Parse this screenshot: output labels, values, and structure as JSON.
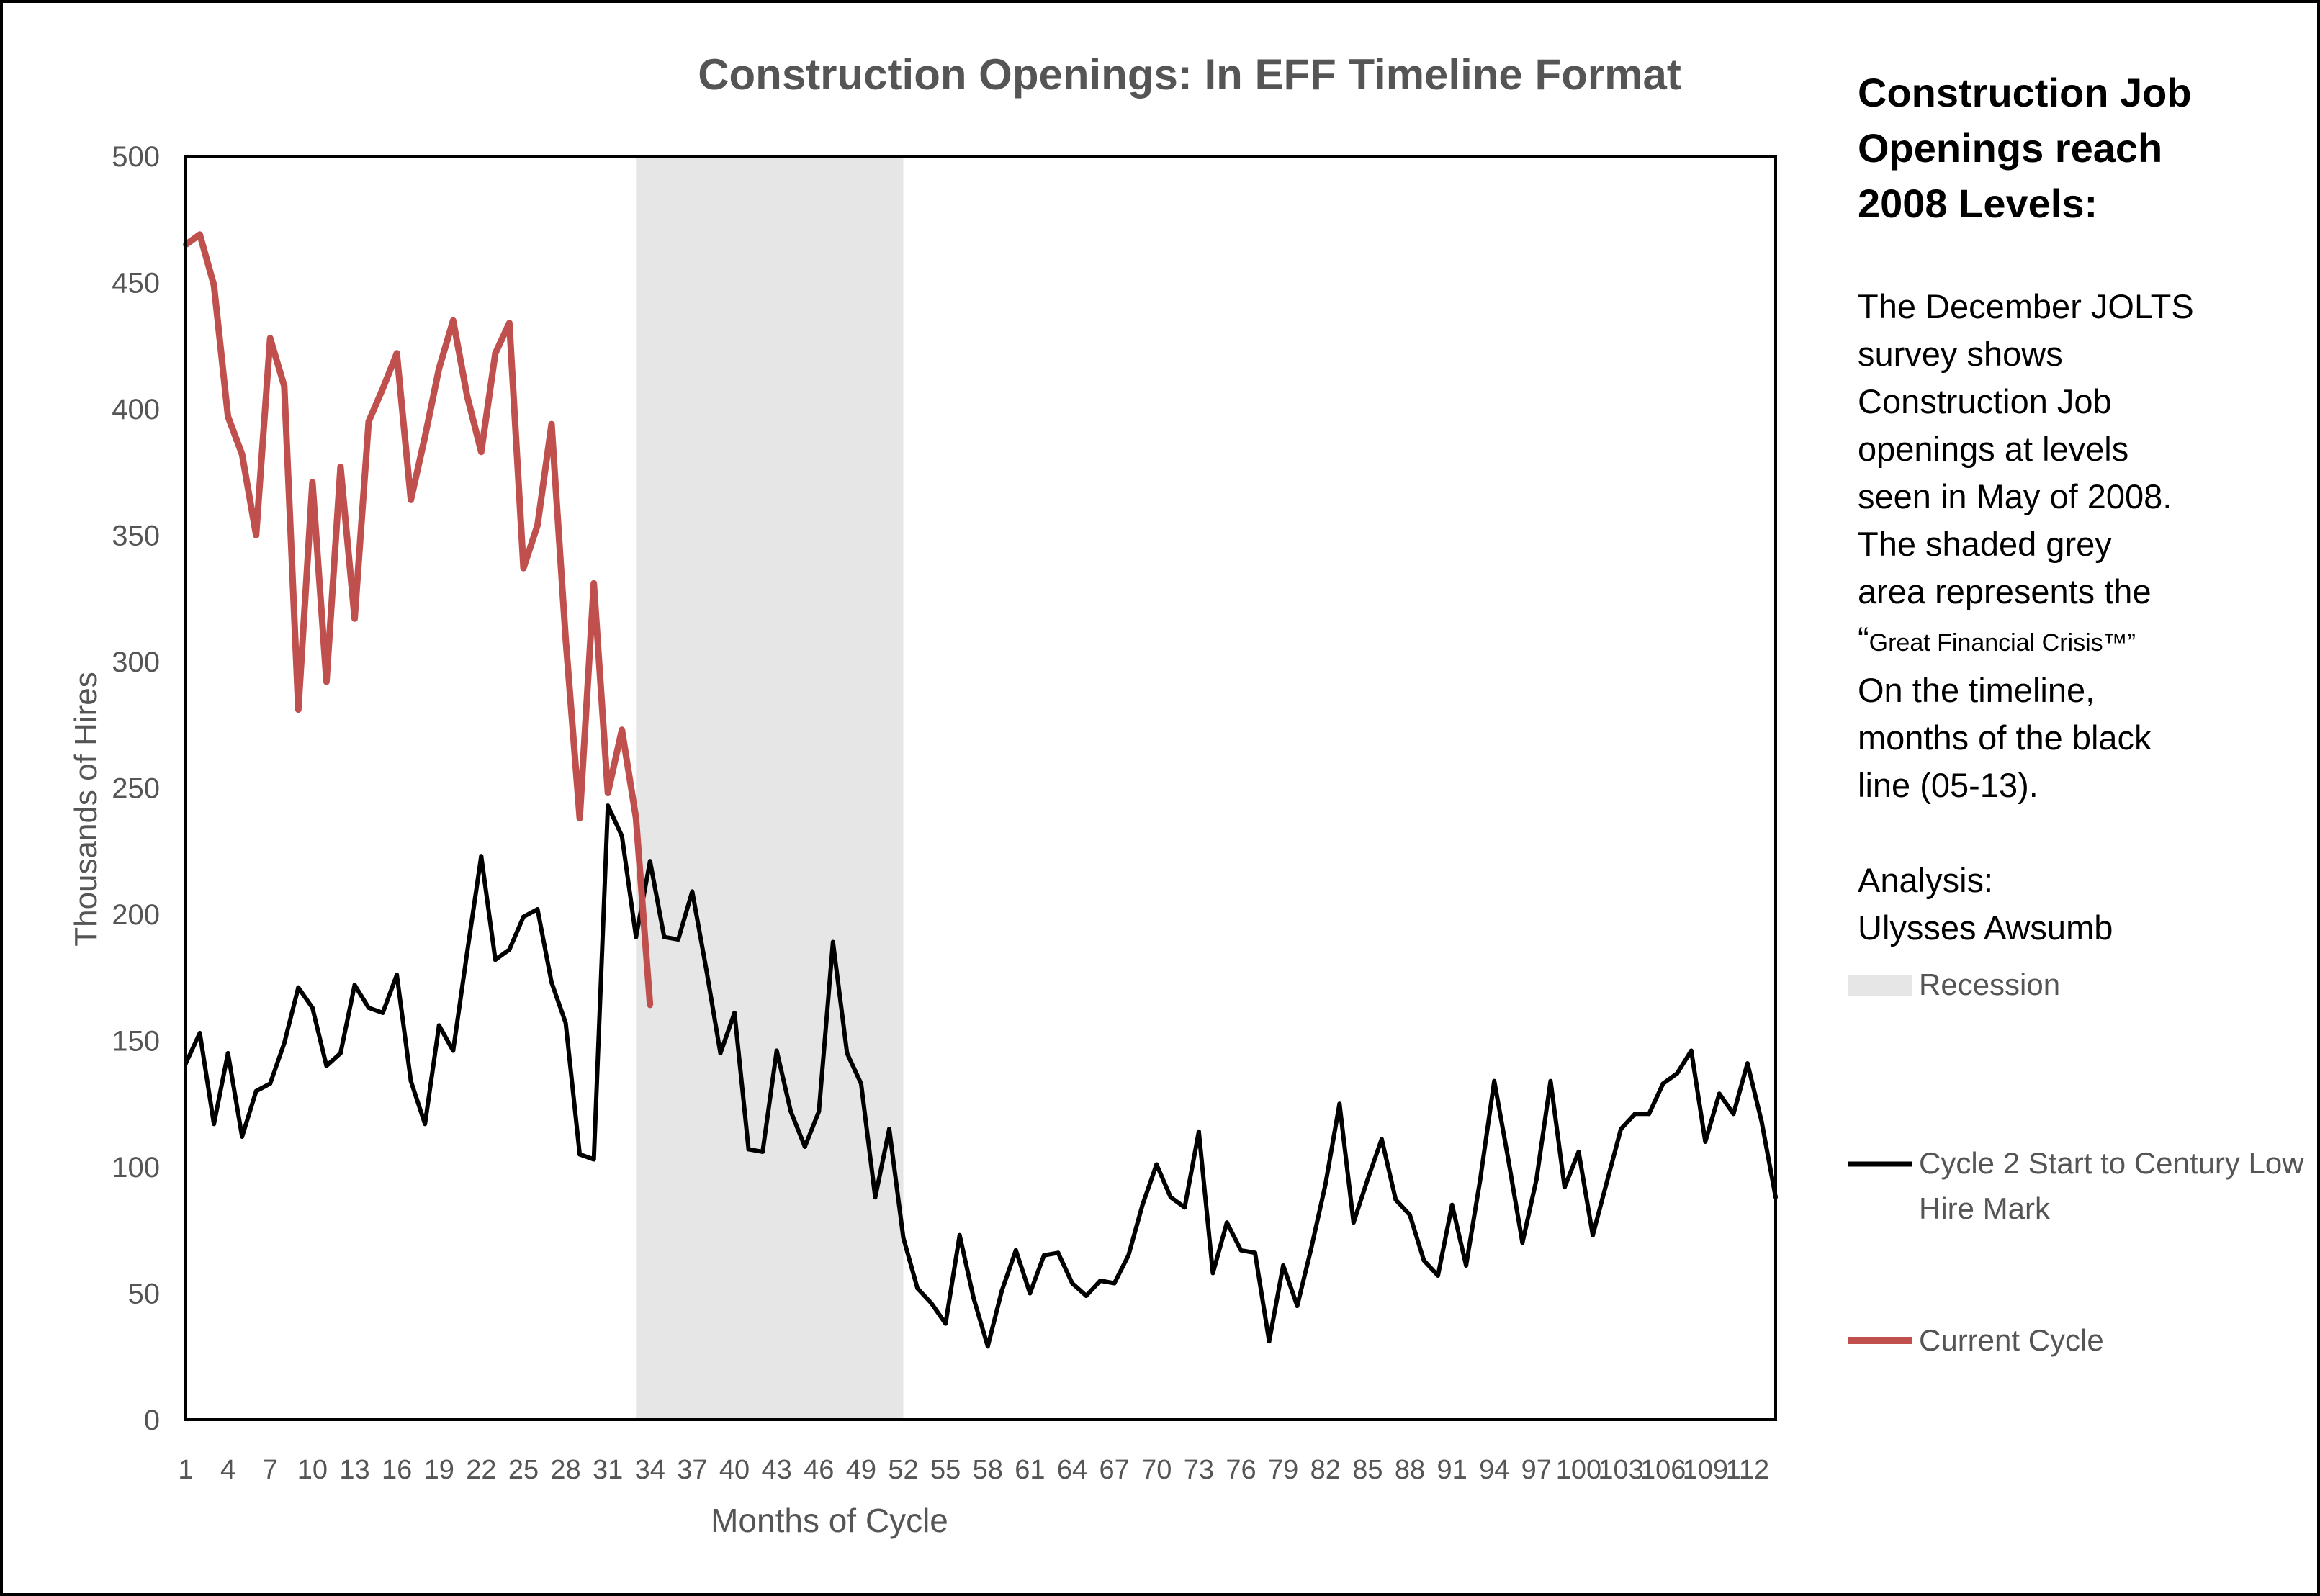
{
  "chart_data": {
    "type": "line",
    "title": "Construction Openings: In EFF Timeline Format",
    "xlabel": "Months of Cycle",
    "ylabel": "Thousands of Hires",
    "ylim": [
      0,
      500
    ],
    "yticks": [
      0,
      50,
      100,
      150,
      200,
      250,
      300,
      350,
      400,
      450,
      500
    ],
    "xlim": [
      1,
      114
    ],
    "x_tick_labels": [
      "1",
      "4",
      "7",
      "10",
      "13",
      "16",
      "19",
      "22",
      "25",
      "28",
      "31",
      "34",
      "37",
      "40",
      "43",
      "46",
      "49",
      "52",
      "55",
      "58",
      "61",
      "64",
      "67",
      "70",
      "73",
      "76",
      "79",
      "82",
      "85",
      "88",
      "91",
      "94",
      "97",
      "100",
      "103",
      "106",
      "109",
      "112"
    ],
    "grid": false,
    "legend_position": "right",
    "shaded_region": {
      "name": "Recession",
      "x_start": 33,
      "x_end": 52,
      "color": "#e6e6e6"
    },
    "series": [
      {
        "name": "Cycle 2 Start to Century Low Hire Mark",
        "color": "#000000",
        "x_start": 1,
        "values": [
          141,
          153,
          117,
          145,
          112,
          130,
          133,
          149,
          171,
          163,
          140,
          145,
          172,
          163,
          161,
          176,
          134,
          117,
          156,
          146,
          185,
          223,
          182,
          186,
          199,
          202,
          173,
          157,
          105,
          103,
          243,
          231,
          191,
          221,
          191,
          190,
          209,
          178,
          145,
          161,
          107,
          106,
          146,
          122,
          108,
          122,
          189,
          145,
          133,
          88,
          115,
          72,
          52,
          46,
          38,
          73,
          48,
          29,
          51,
          67,
          50,
          65,
          66,
          54,
          49,
          55,
          54,
          65,
          85,
          101,
          88,
          84,
          114,
          58,
          78,
          67,
          66,
          31,
          61,
          45,
          68,
          93,
          125,
          78,
          95,
          111,
          87,
          81,
          63,
          57,
          85,
          61,
          95,
          134,
          103,
          70,
          95,
          134,
          92,
          106,
          73,
          94,
          115,
          121,
          121,
          133,
          137,
          146,
          110,
          129,
          121,
          141,
          118,
          88
        ]
      },
      {
        "name": "Current Cycle",
        "color": "#c0504d",
        "x_start": 1,
        "values": [
          465,
          469,
          449,
          397,
          382,
          350,
          428,
          409,
          281,
          371,
          292,
          377,
          317,
          395,
          408,
          422,
          364,
          389,
          416,
          435,
          405,
          383,
          422,
          434,
          337,
          354,
          394,
          309,
          238,
          331,
          248,
          273,
          238,
          164
        ]
      }
    ]
  },
  "side_panel": {
    "heading": [
      "Construction Job",
      "Openings reach",
      "2008 Levels:"
    ],
    "body": [
      "The December JOLTS",
      "survey shows",
      "Construction Job",
      "openings at levels",
      "seen in May of 2008.",
      "The shaded grey",
      "area represents the"
    ],
    "quote_open": "“",
    "quote_text": "Great Financial Crisis™",
    "quote_close": "”",
    "body2": [
      "On the timeline,",
      "months of the black",
      "line (05-13)."
    ],
    "analysis": [
      "Analysis:",
      "Ulysses Awsumb"
    ]
  },
  "legend": {
    "recession": "Recession",
    "cycle2": [
      "Cycle 2 Start to Century Low",
      "Hire Mark"
    ],
    "current": "Current Cycle"
  }
}
